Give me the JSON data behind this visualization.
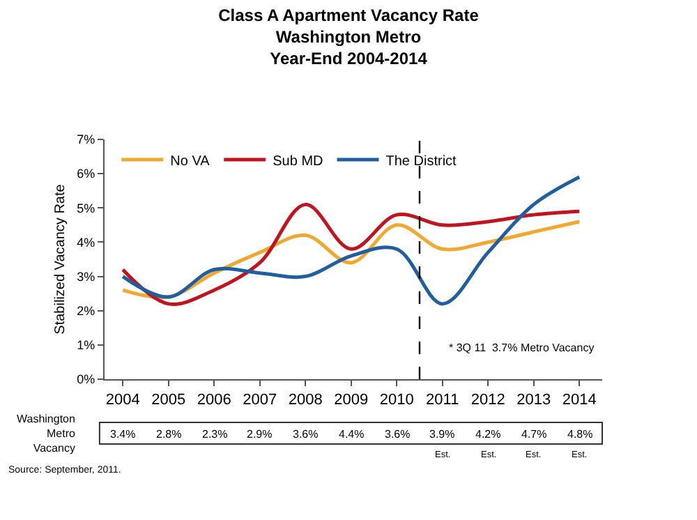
{
  "chart_data": {
    "type": "line",
    "title": "Class A Apartment Vacancy Rate\nWashington Metro\nYear-End 2004-2014",
    "ylabel": "Stabilized Vacancy Rate",
    "x": [
      2004,
      2005,
      2006,
      2007,
      2008,
      2009,
      2010,
      2011,
      2012,
      2013,
      2014
    ],
    "series": [
      {
        "name": "No VA",
        "color": "#f0a830",
        "values": [
          2.6,
          2.4,
          3.1,
          3.7,
          4.2,
          3.4,
          4.5,
          3.8,
          4.0,
          4.3,
          4.6
        ]
      },
      {
        "name": "Sub MD",
        "color": "#c0141e",
        "values": [
          3.2,
          2.2,
          2.6,
          3.4,
          5.1,
          3.8,
          4.8,
          4.5,
          4.6,
          4.8,
          4.9
        ]
      },
      {
        "name": "The District",
        "color": "#1f5fa0",
        "values": [
          3.0,
          2.4,
          3.2,
          3.1,
          3.0,
          3.6,
          3.8,
          2.2,
          3.7,
          5.1,
          5.9
        ]
      }
    ],
    "xlim": [
      2003.6,
      2014.5
    ],
    "xticks": [
      2004,
      2005,
      2006,
      2007,
      2008,
      2009,
      2010,
      2011,
      2012,
      2013,
      2014
    ],
    "ylim": [
      0,
      7
    ],
    "yticks": [
      {
        "value": 0,
        "label": "0%"
      },
      {
        "value": 1,
        "label": "1%"
      },
      {
        "value": 2,
        "label": "2%"
      },
      {
        "value": 3,
        "label": "3%"
      },
      {
        "value": 4,
        "label": "4%"
      },
      {
        "value": 5,
        "label": "5%"
      },
      {
        "value": 6,
        "label": "6%"
      },
      {
        "value": 7,
        "label": "7%"
      }
    ],
    "ref_lines": [
      {
        "axis": "x",
        "value": 2010.5,
        "color": "#000000",
        "line_style": "dashed"
      }
    ],
    "legend": "top left",
    "line_style": "solid",
    "marker": "none",
    "annotations": [
      "* 3Q 11  3.7% Metro Vacancy",
      "Washington\nMetro\nVacancy",
      "Source: September, 2011.",
      "3.4%",
      "2.8%",
      "2.3%",
      "2.9%",
      "3.6%",
      "4.4%",
      "3.6%",
      "3.9%",
      "4.2%",
      "4.7%",
      "4.8%",
      "Est.",
      "Est.",
      "Est.",
      "Est."
    ]
  }
}
